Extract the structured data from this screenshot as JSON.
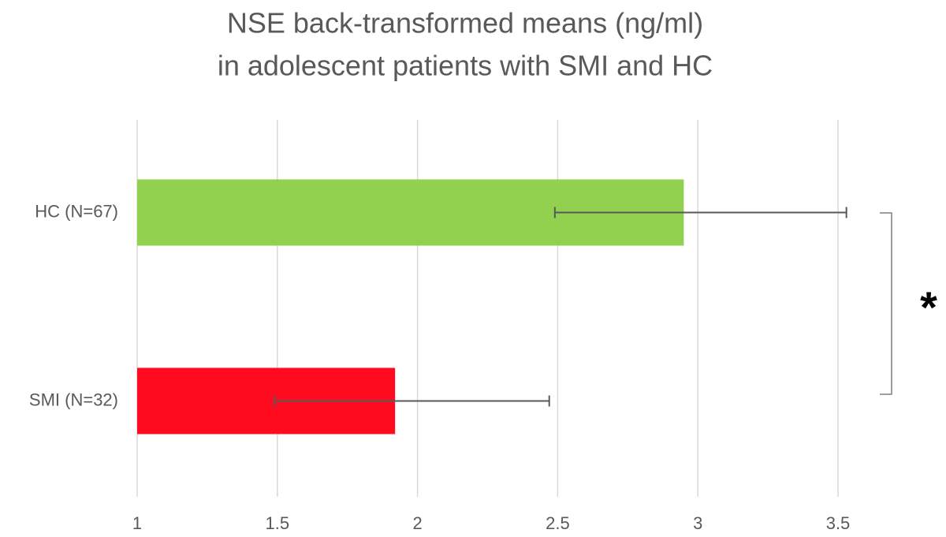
{
  "chart_data": {
    "type": "hbar",
    "title": [
      "NSE back-transformed means (ng/ml)",
      "in adolescent patients with SMI and HC"
    ],
    "categories": [
      "HC (N=67)",
      "SMI (N=32)"
    ],
    "values": [
      2.95,
      1.92
    ],
    "ci_low": [
      2.49,
      1.49
    ],
    "ci_high": [
      3.53,
      2.47
    ],
    "colors": [
      "#92d050",
      "#ff0a1e"
    ],
    "xlim": [
      1,
      3.5
    ],
    "xticks": [
      1,
      1.5,
      2,
      2.5,
      3,
      3.5
    ],
    "grid": true,
    "annotation": "*"
  }
}
